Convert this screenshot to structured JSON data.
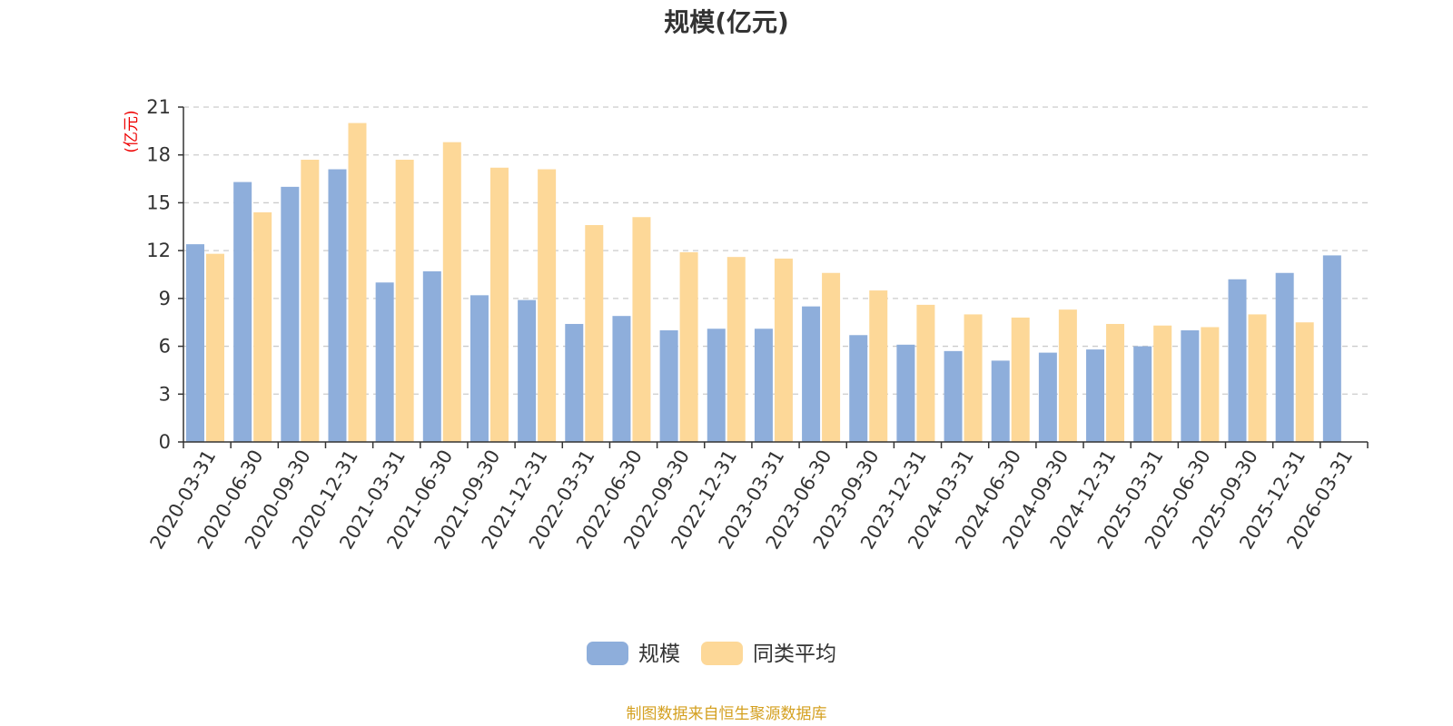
{
  "chart_data": {
    "type": "bar",
    "title": "规模(亿元)",
    "ylabel": "(亿元)",
    "ylim": [
      0,
      21
    ],
    "yticks": [
      0,
      3,
      6,
      9,
      12,
      15,
      18,
      21
    ],
    "grid": true,
    "legend_position": "bottom",
    "categories": [
      "2020-03-31",
      "2020-06-30",
      "2020-09-30",
      "2020-12-31",
      "2021-03-31",
      "2021-06-30",
      "2021-09-30",
      "2021-12-31",
      "2022-03-31",
      "2022-06-30",
      "2022-09-30",
      "2022-12-31",
      "2023-03-31",
      "2023-06-30",
      "2023-09-30",
      "2023-12-31",
      "2024-03-31",
      "2024-06-30",
      "2024-09-30",
      "2024-12-31",
      "2025-03-31",
      "2025-06-30",
      "2025-09-30",
      "2025-12-31",
      "2026-03-31"
    ],
    "series": [
      {
        "name": "规模",
        "color": "#8eaedb",
        "values": [
          12.4,
          16.3,
          16.0,
          17.1,
          10.0,
          10.7,
          9.2,
          8.9,
          7.4,
          7.9,
          7.0,
          7.1,
          7.1,
          8.5,
          6.7,
          6.1,
          5.7,
          5.1,
          5.6,
          5.8,
          6.0,
          7.0,
          10.2,
          10.6,
          11.7
        ]
      },
      {
        "name": "同类平均",
        "color": "#fdd898",
        "values": [
          11.8,
          14.4,
          17.7,
          20.0,
          17.7,
          18.8,
          17.2,
          17.1,
          13.6,
          14.1,
          11.9,
          11.6,
          11.5,
          10.6,
          9.5,
          8.6,
          8.0,
          7.8,
          8.3,
          7.4,
          7.3,
          7.2,
          8.0,
          7.5,
          null
        ]
      }
    ]
  },
  "source": {
    "text": "制图数据来自恒生聚源数据库",
    "color": "#d4a020"
  },
  "axis_unit_color": "#ee0000"
}
